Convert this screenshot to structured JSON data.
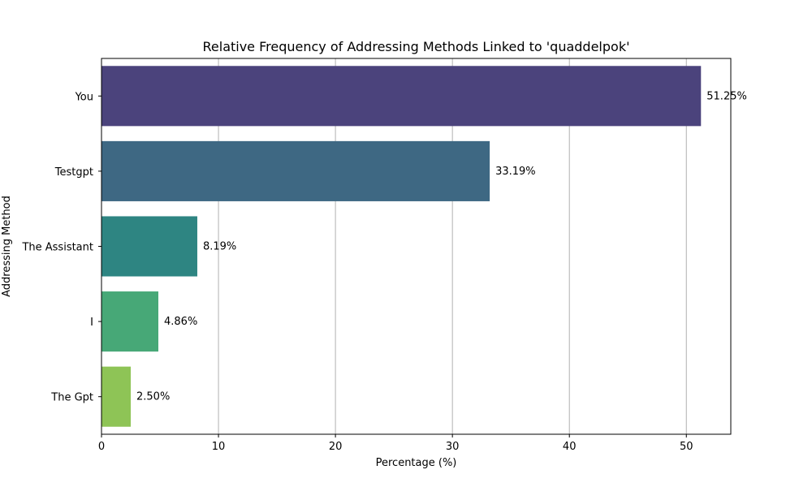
{
  "chart_data": {
    "type": "bar",
    "orientation": "horizontal",
    "title": "Relative Frequency of Addressing Methods Linked to 'quaddelpok'",
    "xlabel": "Percentage (%)",
    "ylabel": "Addressing Method",
    "categories": [
      "You",
      "Testgpt",
      "The Assistant",
      "I",
      "The Gpt"
    ],
    "values": [
      51.25,
      33.19,
      8.19,
      4.86,
      2.5
    ],
    "value_labels": [
      "51.25%",
      "33.19%",
      "8.19%",
      "4.86%",
      "2.50%"
    ],
    "colors": [
      "#4b437c",
      "#3e6883",
      "#2e8582",
      "#47a877",
      "#8ec456"
    ],
    "xlim": [
      0,
      53.8
    ],
    "xticks": [
      0,
      10,
      20,
      30,
      40,
      50
    ],
    "xtick_labels": [
      "0",
      "10",
      "20",
      "30",
      "40",
      "50"
    ],
    "grid": "vertical"
  }
}
